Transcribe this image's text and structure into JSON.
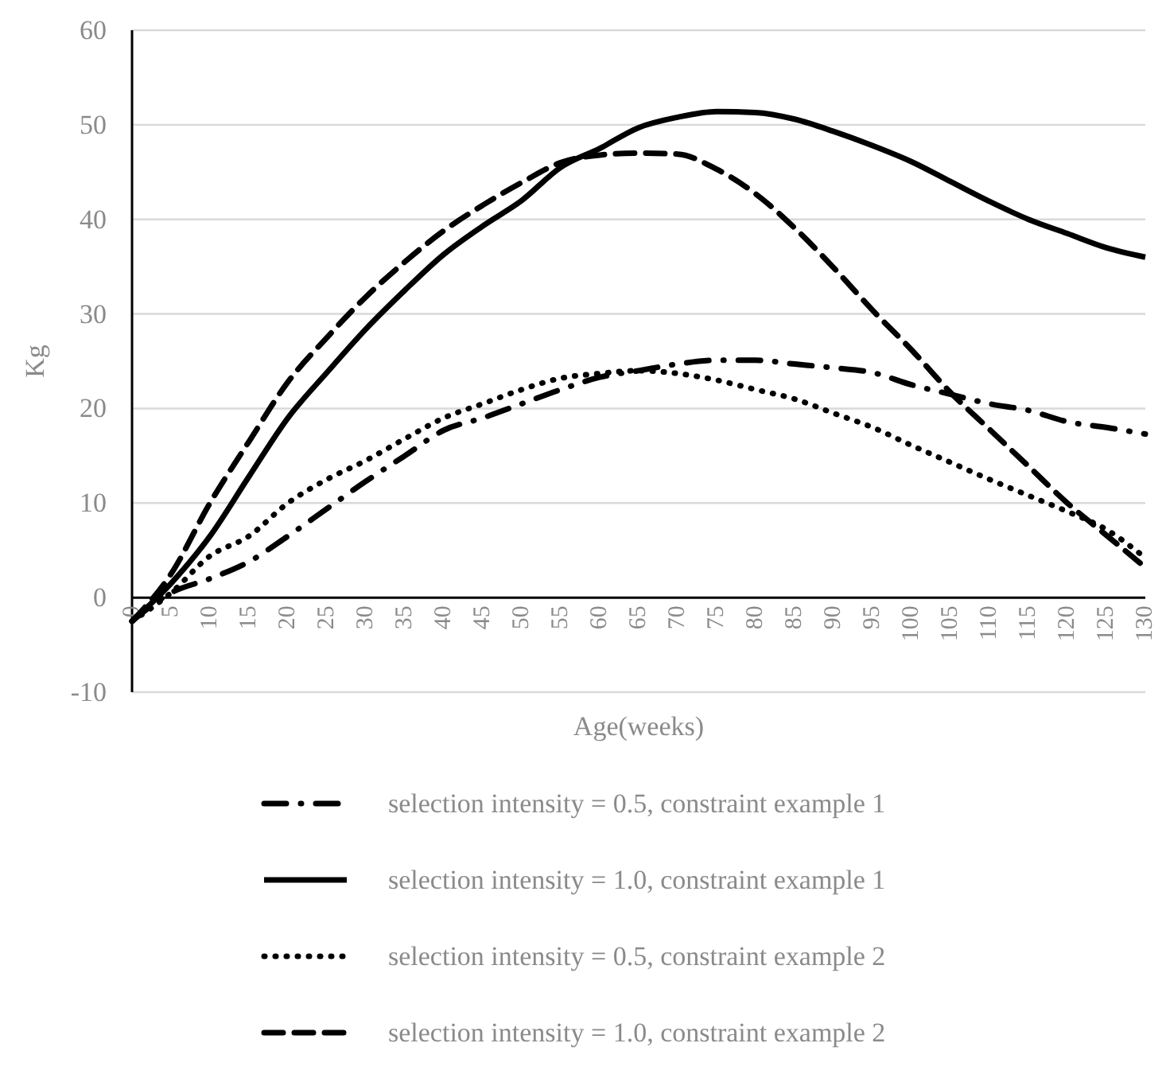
{
  "chart_data": {
    "type": "line",
    "xlabel": "Age(weeks)",
    "ylabel": "Kg",
    "x": [
      0,
      5,
      10,
      15,
      20,
      25,
      30,
      35,
      40,
      45,
      50,
      55,
      60,
      65,
      70,
      75,
      80,
      85,
      90,
      95,
      100,
      105,
      110,
      115,
      120,
      125,
      130
    ],
    "xlim": [
      0,
      130
    ],
    "xticks": [
      0,
      5,
      10,
      15,
      20,
      25,
      30,
      35,
      40,
      45,
      50,
      55,
      60,
      65,
      70,
      75,
      80,
      85,
      90,
      95,
      100,
      105,
      110,
      115,
      120,
      125,
      130
    ],
    "ylim": [
      -10,
      60
    ],
    "yticks": [
      -10,
      0,
      10,
      20,
      30,
      40,
      50,
      60
    ],
    "grid": "y",
    "legend": "bottom",
    "marker": "none",
    "series": [
      {
        "name": "selection intensity = 0.5, constraint example 1",
        "color": "#000000",
        "line_style": "dashdot",
        "values": [
          -2.5,
          0.5,
          2,
          3.8,
          6.5,
          9.4,
          12.3,
          15,
          17.7,
          19,
          20.5,
          22,
          23.3,
          24,
          24.7,
          25.1,
          25.1,
          24.7,
          24.3,
          23.8,
          22.5,
          21.5,
          20.5,
          19.8,
          18.6,
          18,
          17.3
        ]
      },
      {
        "name": "selection intensity = 1.0, constraint example 1",
        "color": "#000000",
        "line_style": "solid",
        "values": [
          -2.5,
          1.5,
          6.5,
          12.8,
          19,
          23.8,
          28.4,
          32.5,
          36.3,
          39.3,
          42,
          45.5,
          47.5,
          49.7,
          50.8,
          51.4,
          51.3,
          50.6,
          49.3,
          47.8,
          46.1,
          44,
          41.9,
          40,
          38.5,
          37,
          36
        ]
      },
      {
        "name": "selection intensity = 0.5, constraint example 2",
        "color": "#000000",
        "line_style": "dotted",
        "values": [
          -2.5,
          0.5,
          4.4,
          6.5,
          10,
          12.5,
          14.5,
          16.8,
          19,
          20.5,
          22,
          23.2,
          23.7,
          24,
          23.7,
          23,
          22,
          21,
          19.5,
          18,
          16.1,
          14.3,
          12.5,
          10.8,
          9.1,
          7.2,
          4.2
        ]
      },
      {
        "name": "selection intensity = 1.0, constraint example 2",
        "color": "#000000",
        "line_style": "dashed",
        "values": [
          -2.5,
          2.5,
          10,
          16.5,
          22.8,
          27.5,
          31.8,
          35.5,
          38.8,
          41.5,
          43.9,
          46,
          46.8,
          47,
          46.9,
          45.3,
          42.7,
          39.1,
          34.9,
          30.4,
          26.2,
          21.7,
          17.8,
          13.9,
          10,
          6.6,
          3.2
        ]
      }
    ]
  }
}
